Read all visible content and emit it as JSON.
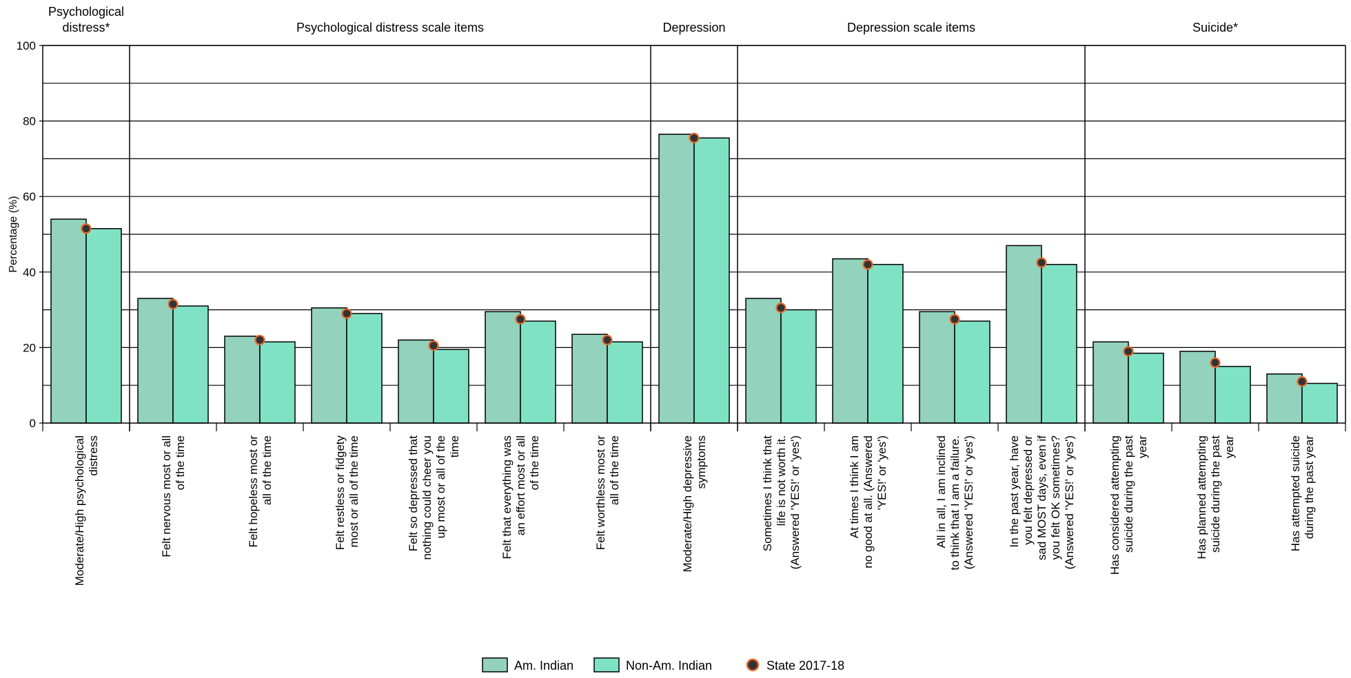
{
  "chart_data": {
    "type": "bar",
    "ylabel": "Percentage (%)",
    "ylim": [
      0,
      100
    ],
    "yticks": [
      {
        "value": 0,
        "label": "0"
      },
      {
        "value": 20,
        "label": "20"
      },
      {
        "value": 40,
        "label": "40"
      },
      {
        "value": 60,
        "label": "60"
      },
      {
        "value": 80,
        "label": "80"
      },
      {
        "value": 100,
        "label": "100"
      }
    ],
    "grid": true,
    "legend_position": "bottom-center",
    "groups": [
      {
        "label": "Psychological distress*",
        "start": 0,
        "end": 0
      },
      {
        "label": "Psychological distress scale items",
        "start": 1,
        "end": 6
      },
      {
        "label": "Depression",
        "start": 7,
        "end": 7
      },
      {
        "label": "Depression scale items",
        "start": 8,
        "end": 11
      },
      {
        "label": "Suicide*",
        "start": 12,
        "end": 14
      }
    ],
    "categories": [
      [
        "Moderate/High psychological",
        "distress"
      ],
      [
        "Felt nervous most or all",
        "of the time"
      ],
      [
        "Felt hopeless most or",
        "all of the time"
      ],
      [
        "Felt restless or fidgety",
        "most or all of the time"
      ],
      [
        "Felt so depressed that",
        "nothing could cheer you",
        "up most or all of the",
        "time"
      ],
      [
        "Felt that everything was",
        "an effort most or all",
        "of the time"
      ],
      [
        "Felt worthless most or",
        "all of the time"
      ],
      [
        "Moderate/High depressive",
        "symptoms"
      ],
      [
        "Sometimes I think that",
        "life is not worth it.",
        "(Answered 'YES!' or 'yes')"
      ],
      [
        "At times I think I am",
        "no good at all. (Answered",
        "'YES!' or 'yes')"
      ],
      [
        "All in all, I am inclined",
        "to think that I am a failure.",
        "(Answered 'YES!' or 'yes')"
      ],
      [
        "In the past year, have",
        "you felt depressed or",
        "sad MOST days, even if",
        "you felt OK sometimes?",
        "(Answered 'YES!' or 'yes')"
      ],
      [
        "Has considered attempting",
        "suicide during the past",
        "year"
      ],
      [
        "Has planned attempting",
        "suicide during the past",
        "year"
      ],
      [
        "Has attempted suicide",
        "during the past year"
      ]
    ],
    "series": [
      {
        "name": "Am. Indian",
        "color": "#93d2bc",
        "values": [
          54,
          33,
          23,
          30.5,
          22,
          29.5,
          23.5,
          76.5,
          33,
          43.5,
          29.5,
          47,
          21.5,
          19,
          13
        ]
      },
      {
        "name": "Non-Am. Indian",
        "color": "#80e2c4",
        "values": [
          51.5,
          31,
          21.5,
          29,
          19.5,
          27,
          21.5,
          75.5,
          30,
          42,
          27,
          42,
          18.5,
          15,
          10.5
        ]
      },
      {
        "name": "State 2017-18",
        "type": "marker",
        "color": "#333333",
        "edge_color": "#e8692d",
        "values": [
          51.5,
          31.5,
          22,
          29,
          20.5,
          27.5,
          22,
          75.5,
          30.5,
          42,
          27.5,
          42.5,
          19,
          16,
          11
        ]
      }
    ]
  }
}
